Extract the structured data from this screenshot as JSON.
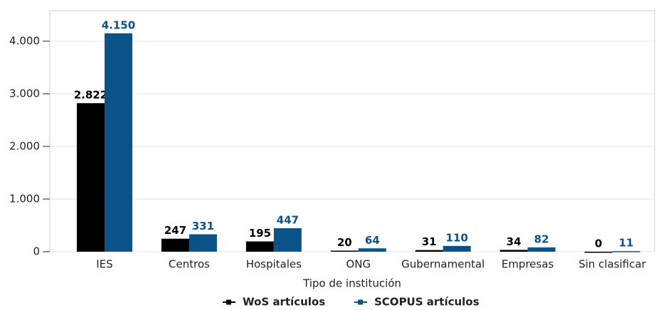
{
  "chart_data": {
    "type": "bar",
    "x_label": "Tipo de institución",
    "categories": [
      "IES",
      "Centros",
      "Hospitales",
      "ONG",
      "Gubernamental",
      "Empresas",
      "Sin clasificar"
    ],
    "series": [
      {
        "name": "WoS artículos",
        "color": "#000000",
        "values": [
          2822,
          247,
          195,
          20,
          31,
          34,
          0
        ],
        "value_labels": [
          "2.822",
          "247",
          "195",
          "20",
          "31",
          "34",
          "0"
        ]
      },
      {
        "name": "SCOPUS artículos",
        "color": "#0b5289",
        "values": [
          4150,
          331,
          447,
          64,
          110,
          82,
          11
        ],
        "value_labels": [
          "4.150",
          "331",
          "447",
          "64",
          "110",
          "82",
          "11"
        ]
      }
    ],
    "ylim": [
      0,
      4580
    ],
    "yticks": [
      {
        "value": 0,
        "label": "0"
      },
      {
        "value": 1000,
        "label": "1.000"
      },
      {
        "value": 2000,
        "label": "2.000"
      },
      {
        "value": 3000,
        "label": "3.000"
      },
      {
        "value": 4000,
        "label": "4.000"
      }
    ],
    "grid": true,
    "legend": "bottom"
  }
}
